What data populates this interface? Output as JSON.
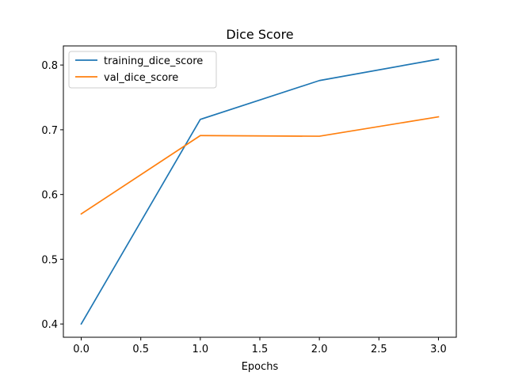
{
  "chart_data": {
    "type": "line",
    "title": "Dice Score",
    "xlabel": "Epochs",
    "ylabel": "",
    "x": [
      0,
      1,
      2,
      3
    ],
    "series": [
      {
        "name": "training_dice_score",
        "values": [
          0.4,
          0.716,
          0.776,
          0.809
        ],
        "color": "#1f77b4"
      },
      {
        "name": "val_dice_score",
        "values": [
          0.57,
          0.691,
          0.69,
          0.72
        ],
        "color": "#ff7f0e"
      }
    ],
    "xlim": [
      -0.15,
      3.15
    ],
    "ylim": [
      0.3795,
      0.8295
    ],
    "xticks": [
      0,
      0.5,
      1,
      1.5,
      2,
      2.5,
      3
    ],
    "xtick_labels": [
      "0.0",
      "0.5",
      "1.0",
      "1.5",
      "2.0",
      "2.5",
      "3.0"
    ],
    "yticks": [
      0.4,
      0.5,
      0.6,
      0.7,
      0.8
    ],
    "ytick_labels": [
      "0.4",
      "0.5",
      "0.6",
      "0.7",
      "0.8"
    ],
    "grid": false,
    "legend_position": "top-left"
  }
}
